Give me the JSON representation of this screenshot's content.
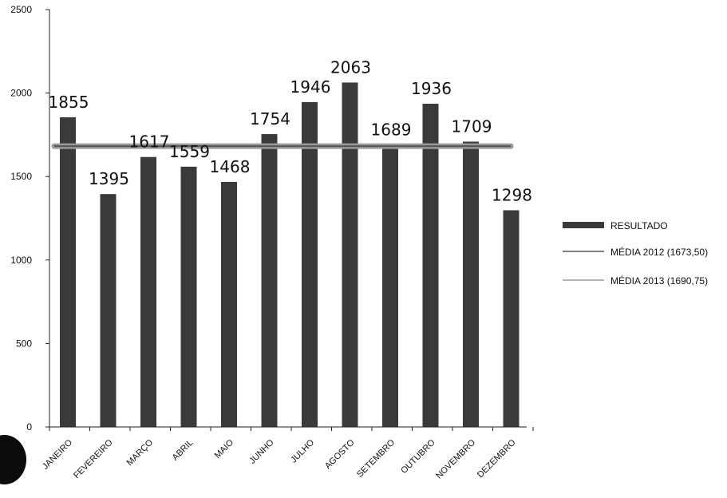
{
  "chart_data": {
    "type": "bar",
    "categories": [
      "JANEIRO",
      "FEVEREIRO",
      "MARÇO",
      "ABRIL",
      "MAIO",
      "JUNHO",
      "JULHO",
      "AGOSTO",
      "SETEMBRO",
      "OUTUBRO",
      "NOVEMBRO",
      "DEZEMBRO"
    ],
    "series": [
      {
        "name": "RESULTADO",
        "values": [
          1855,
          1395,
          1617,
          1559,
          1468,
          1754,
          1946,
          2063,
          1689,
          1936,
          1709,
          1298
        ]
      }
    ],
    "data_labels": [
      "1855",
      "1395",
      "1617",
      "1559",
      "1468",
      "1754",
      "1946",
      "2063",
      "1689",
      "1936",
      "1709",
      "1298"
    ],
    "reference_lines": [
      {
        "name": "MÉDIA 2012 (1673,50)",
        "value": 1673.5,
        "color": "#555555"
      },
      {
        "name": "MÉDIA 2013 (1690,75)",
        "value": 1690.75,
        "color": "#9a9a9a"
      }
    ],
    "yticks": [
      "0",
      "500",
      "1000",
      "1500",
      "2000",
      "2500"
    ],
    "ylim": [
      0,
      2500
    ],
    "grid": false,
    "legend_position": "right",
    "colors": {
      "bar": "#3a3a3a",
      "axis": "#222222",
      "line_2012": "#555555",
      "line_2013": "#9a9a9a"
    }
  }
}
